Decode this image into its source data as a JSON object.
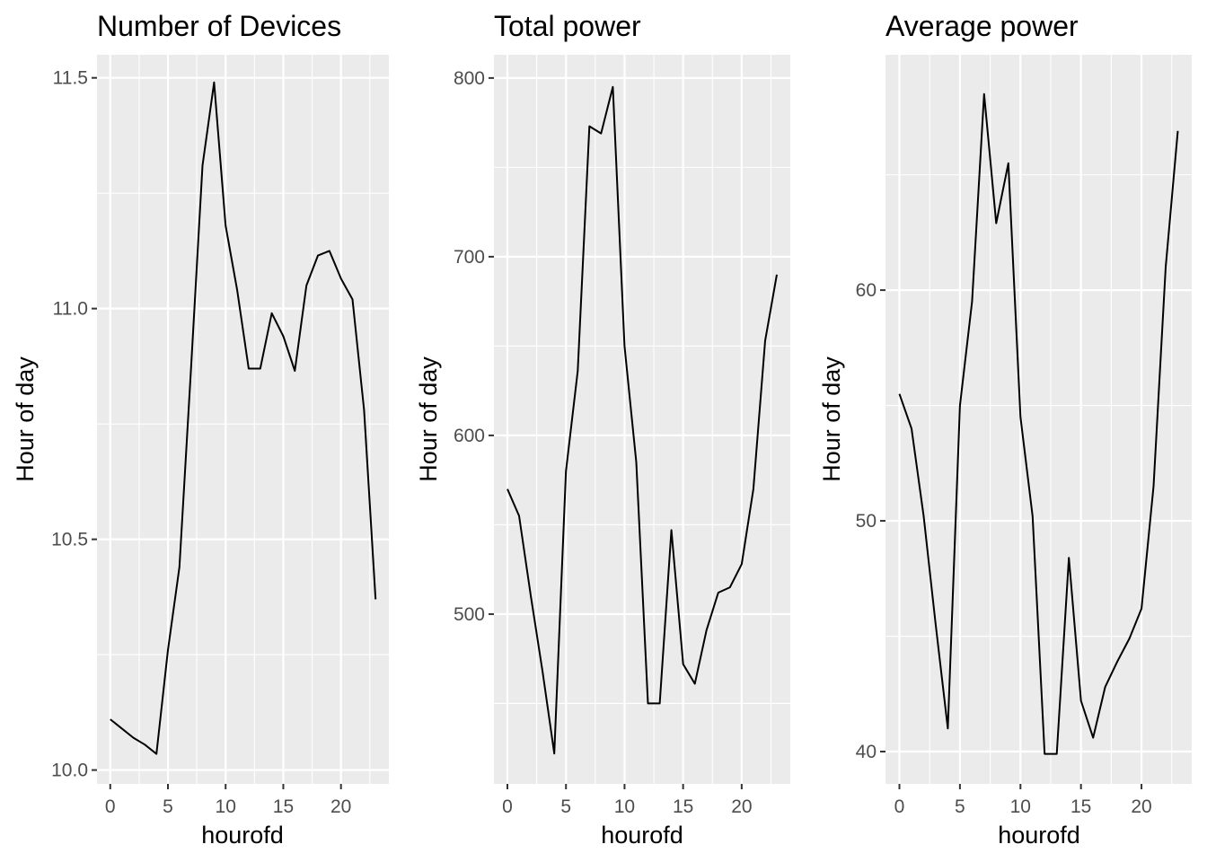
{
  "chart_data": [
    {
      "type": "line",
      "title": "Number of Devices",
      "xlabel": "hourofd",
      "ylabel": "Hour of day",
      "grid": true,
      "x": [
        0,
        1,
        2,
        3,
        4,
        5,
        6,
        7,
        8,
        9,
        10,
        11,
        12,
        13,
        14,
        15,
        16,
        17,
        18,
        19,
        20,
        21,
        22,
        23
      ],
      "series": [
        {
          "values": [
            10.11,
            10.09,
            10.07,
            10.055,
            10.035,
            10.26,
            10.44,
            10.87,
            11.31,
            11.49,
            11.18,
            11.04,
            10.87,
            10.87,
            10.99,
            10.94,
            10.865,
            11.05,
            11.115,
            11.125,
            11.065,
            11.02,
            10.78,
            10.37
          ]
        }
      ],
      "xlim": [
        -1.15,
        24.15
      ],
      "ylim": [
        9.97,
        11.55
      ],
      "xticks": [
        0,
        5,
        10,
        15,
        20
      ],
      "xtick_labels": [
        "0",
        "5",
        "10",
        "15",
        "20"
      ],
      "yticks": [
        10.0,
        10.5,
        11.0,
        11.5
      ],
      "ytick_labels": [
        "10.0",
        "10.5",
        "11.0",
        "11.5"
      ]
    },
    {
      "type": "line",
      "title": "Total power",
      "xlabel": "hourofd",
      "ylabel": "Hour of day",
      "grid": true,
      "x": [
        0,
        1,
        2,
        3,
        4,
        5,
        6,
        7,
        8,
        9,
        10,
        11,
        12,
        13,
        14,
        15,
        16,
        17,
        18,
        19,
        20,
        21,
        22,
        23
      ],
      "series": [
        {
          "values": [
            570,
            555,
            510,
            468,
            422,
            580,
            636,
            773,
            769,
            795,
            650,
            585,
            450,
            450,
            547,
            472,
            461,
            491,
            512,
            515,
            528,
            570,
            653,
            690
          ]
        }
      ],
      "xlim": [
        -1.15,
        24.15
      ],
      "ylim": [
        405,
        813
      ],
      "xticks": [
        0,
        5,
        10,
        15,
        20
      ],
      "xtick_labels": [
        "0",
        "5",
        "10",
        "15",
        "20"
      ],
      "yticks": [
        500,
        600,
        700,
        800
      ],
      "ytick_labels": [
        "500",
        "600",
        "700",
        "800"
      ]
    },
    {
      "type": "line",
      "title": "Average power",
      "xlabel": "hourofd",
      "ylabel": "Hour of day",
      "grid": true,
      "x": [
        0,
        1,
        2,
        3,
        4,
        5,
        6,
        7,
        8,
        9,
        10,
        11,
        12,
        13,
        14,
        15,
        16,
        17,
        18,
        19,
        20,
        21,
        22,
        23
      ],
      "series": [
        {
          "values": [
            55.5,
            54.0,
            50.2,
            45.5,
            41.0,
            55.0,
            59.5,
            68.5,
            62.9,
            65.5,
            54.5,
            50.2,
            39.9,
            39.9,
            48.4,
            42.2,
            40.6,
            42.8,
            43.9,
            44.9,
            46.2,
            51.5,
            61.0,
            66.9
          ]
        }
      ],
      "xlim": [
        -1.15,
        24.15
      ],
      "ylim": [
        38.6,
        70.2
      ],
      "xticks": [
        0,
        5,
        10,
        15,
        20
      ],
      "xtick_labels": [
        "0",
        "5",
        "10",
        "15",
        "20"
      ],
      "yticks": [
        40,
        50,
        60
      ],
      "ytick_labels": [
        "40",
        "50",
        "60"
      ]
    }
  ]
}
